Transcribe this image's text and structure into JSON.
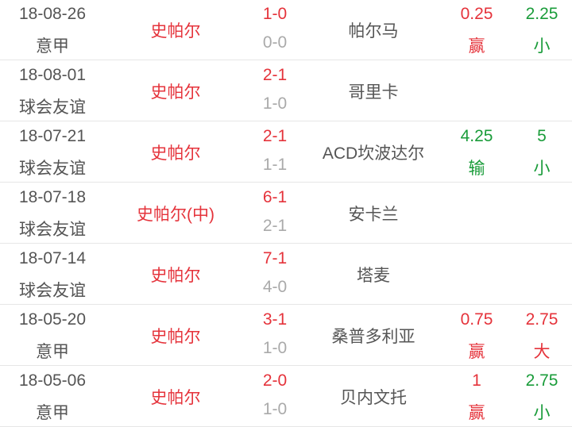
{
  "colors": {
    "red": "#e5333b",
    "green": "#1a9c3a",
    "text": "#555555",
    "muted": "#aaaaaa"
  },
  "matches": [
    {
      "date": "18-08-26",
      "league": "意甲",
      "home": "史帕尔",
      "score": "1-0",
      "half": "0-0",
      "away": "帕尔马",
      "handicap": "0.25",
      "handicap_result": "赢",
      "handicap_color": "red",
      "total": "2.25",
      "total_result": "小",
      "total_color": "green"
    },
    {
      "date": "18-08-01",
      "league": "球会友谊",
      "home": "史帕尔",
      "score": "2-1",
      "half": "1-0",
      "away": "哥里卡",
      "handicap": "",
      "handicap_result": "",
      "handicap_color": "",
      "total": "",
      "total_result": "",
      "total_color": ""
    },
    {
      "date": "18-07-21",
      "league": "球会友谊",
      "home": "史帕尔",
      "score": "2-1",
      "half": "1-1",
      "away": "ACD坎波达尔",
      "handicap": "4.25",
      "handicap_result": "输",
      "handicap_color": "green",
      "total": "5",
      "total_result": "小",
      "total_color": "green"
    },
    {
      "date": "18-07-18",
      "league": "球会友谊",
      "home": "史帕尔(中)",
      "score": "6-1",
      "half": "2-1",
      "away": "安卡兰",
      "handicap": "",
      "handicap_result": "",
      "handicap_color": "",
      "total": "",
      "total_result": "",
      "total_color": ""
    },
    {
      "date": "18-07-14",
      "league": "球会友谊",
      "home": "史帕尔",
      "score": "7-1",
      "half": "4-0",
      "away": "塔麦",
      "handicap": "",
      "handicap_result": "",
      "handicap_color": "",
      "total": "",
      "total_result": "",
      "total_color": ""
    },
    {
      "date": "18-05-20",
      "league": "意甲",
      "home": "史帕尔",
      "score": "3-1",
      "half": "1-0",
      "away": "桑普多利亚",
      "handicap": "0.75",
      "handicap_result": "赢",
      "handicap_color": "red",
      "total": "2.75",
      "total_result": "大",
      "total_color": "red"
    },
    {
      "date": "18-05-06",
      "league": "意甲",
      "home": "史帕尔",
      "score": "2-0",
      "half": "1-0",
      "away": "贝内文托",
      "handicap": "1",
      "handicap_result": "赢",
      "handicap_color": "red",
      "total": "2.75",
      "total_result": "小",
      "total_color": "green"
    }
  ]
}
